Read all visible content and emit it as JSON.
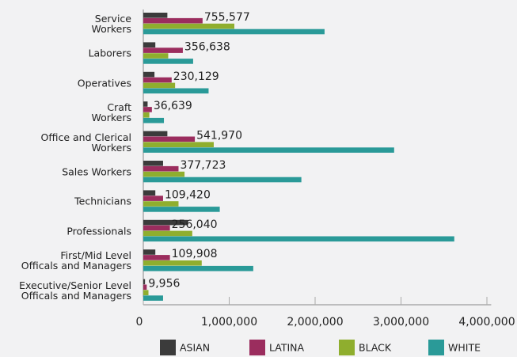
{
  "chart_data": {
    "type": "hbar",
    "categories": [
      "Service\nWorkers",
      "Laborers",
      "Operatives",
      "Craft\nWorkers",
      "Office and Clerical\nWorkers",
      "Sales Workers",
      "Technicians",
      "Professionals",
      "First/Mid Level\nOfficals and Managers",
      "Executive/Senior Level\nOfficals and Managers"
    ],
    "annotations": [
      "755,577",
      "356,638",
      "230,129",
      "36,639",
      "541,970",
      "377,723",
      "109,420",
      "256,040",
      "109,908",
      "9,956"
    ],
    "series": [
      {
        "name": "ASIAN",
        "color": "#3b3b3b",
        "values": [
          280000,
          140000,
          130000,
          50000,
          280000,
          230000,
          140000,
          520000,
          140000,
          20000
        ]
      },
      {
        "name": "LATINA",
        "color": "#9b2d5e",
        "values": [
          690000,
          460000,
          330000,
          100000,
          600000,
          410000,
          230000,
          310000,
          310000,
          40000
        ]
      },
      {
        "name": "BLACK",
        "color": "#8fae2e",
        "values": [
          1060000,
          290000,
          370000,
          70000,
          820000,
          480000,
          410000,
          570000,
          680000,
          60000
        ]
      },
      {
        "name": "WHITE",
        "color": "#2a9a98",
        "values": [
          2110000,
          580000,
          760000,
          240000,
          2920000,
          1840000,
          890000,
          3620000,
          1280000,
          230000
        ]
      }
    ],
    "xlim": [
      0,
      4050000
    ],
    "xticks": [
      0,
      {
        "value": 1000000,
        "label": "1,000,000"
      },
      {
        "value": 2000000,
        "label": "2,000,000"
      },
      {
        "value": 3000000,
        "label": "3,000,000"
      },
      {
        "value": 4000000,
        "label": "4,000,000"
      }
    ],
    "legend": "bottom"
  }
}
